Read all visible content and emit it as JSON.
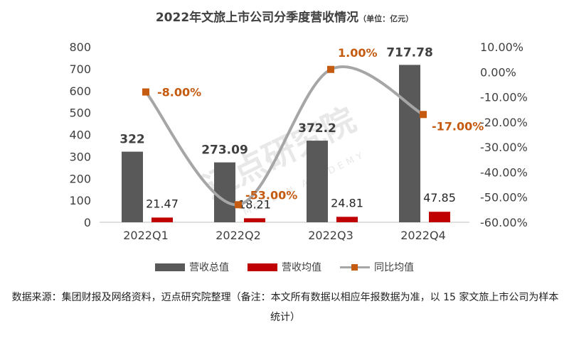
{
  "title": "2022年文旅上市公司分季度营收情况",
  "unit": "（单位：亿元）",
  "source": "数据来源：集团财报及网络资料，迈点研究院整理（备注：本文所有数据以相应年报数据为准，以 15 家文旅上市公司为样本统计）",
  "watermark": {
    "text": "迈点研究院",
    "sub": "MEADIN ACADEMY"
  },
  "chart_data": {
    "type": "bar",
    "categories": [
      "2022Q1",
      "2022Q2",
      "2022Q3",
      "2022Q4"
    ],
    "series": [
      {
        "name": "营收总值",
        "type": "bar",
        "axis": "left",
        "color": "#595959",
        "values": [
          322,
          273.09,
          372.2,
          717.78
        ],
        "labels": [
          "322",
          "273.09",
          "372.2",
          "717.78"
        ]
      },
      {
        "name": "营收均值",
        "type": "bar",
        "axis": "left",
        "color": "#c00000",
        "values": [
          21.47,
          18.21,
          24.81,
          47.85
        ],
        "labels": [
          "21.47",
          "18.21",
          "24.81",
          "47.85"
        ]
      },
      {
        "name": "同比均值",
        "type": "line",
        "axis": "right",
        "color": "#a6a6a6",
        "marker_color": "#c55a11",
        "values": [
          -8.0,
          -53.0,
          1.0,
          -17.0
        ],
        "labels": [
          "-8.00%",
          "-53.00%",
          "1.00%",
          "-17.00%"
        ]
      }
    ],
    "y_left": {
      "min": 0,
      "max": 800,
      "ticks": [
        "0",
        "100",
        "200",
        "300",
        "400",
        "500",
        "600",
        "700",
        "800"
      ]
    },
    "y_right": {
      "min": -60,
      "max": 10,
      "ticks": [
        "-60.00%",
        "-50.00%",
        "-40.00%",
        "-30.00%",
        "-20.00%",
        "-10.00%",
        "0.00%",
        "10.00%"
      ]
    },
    "legend_position": "bottom",
    "grid": false
  }
}
